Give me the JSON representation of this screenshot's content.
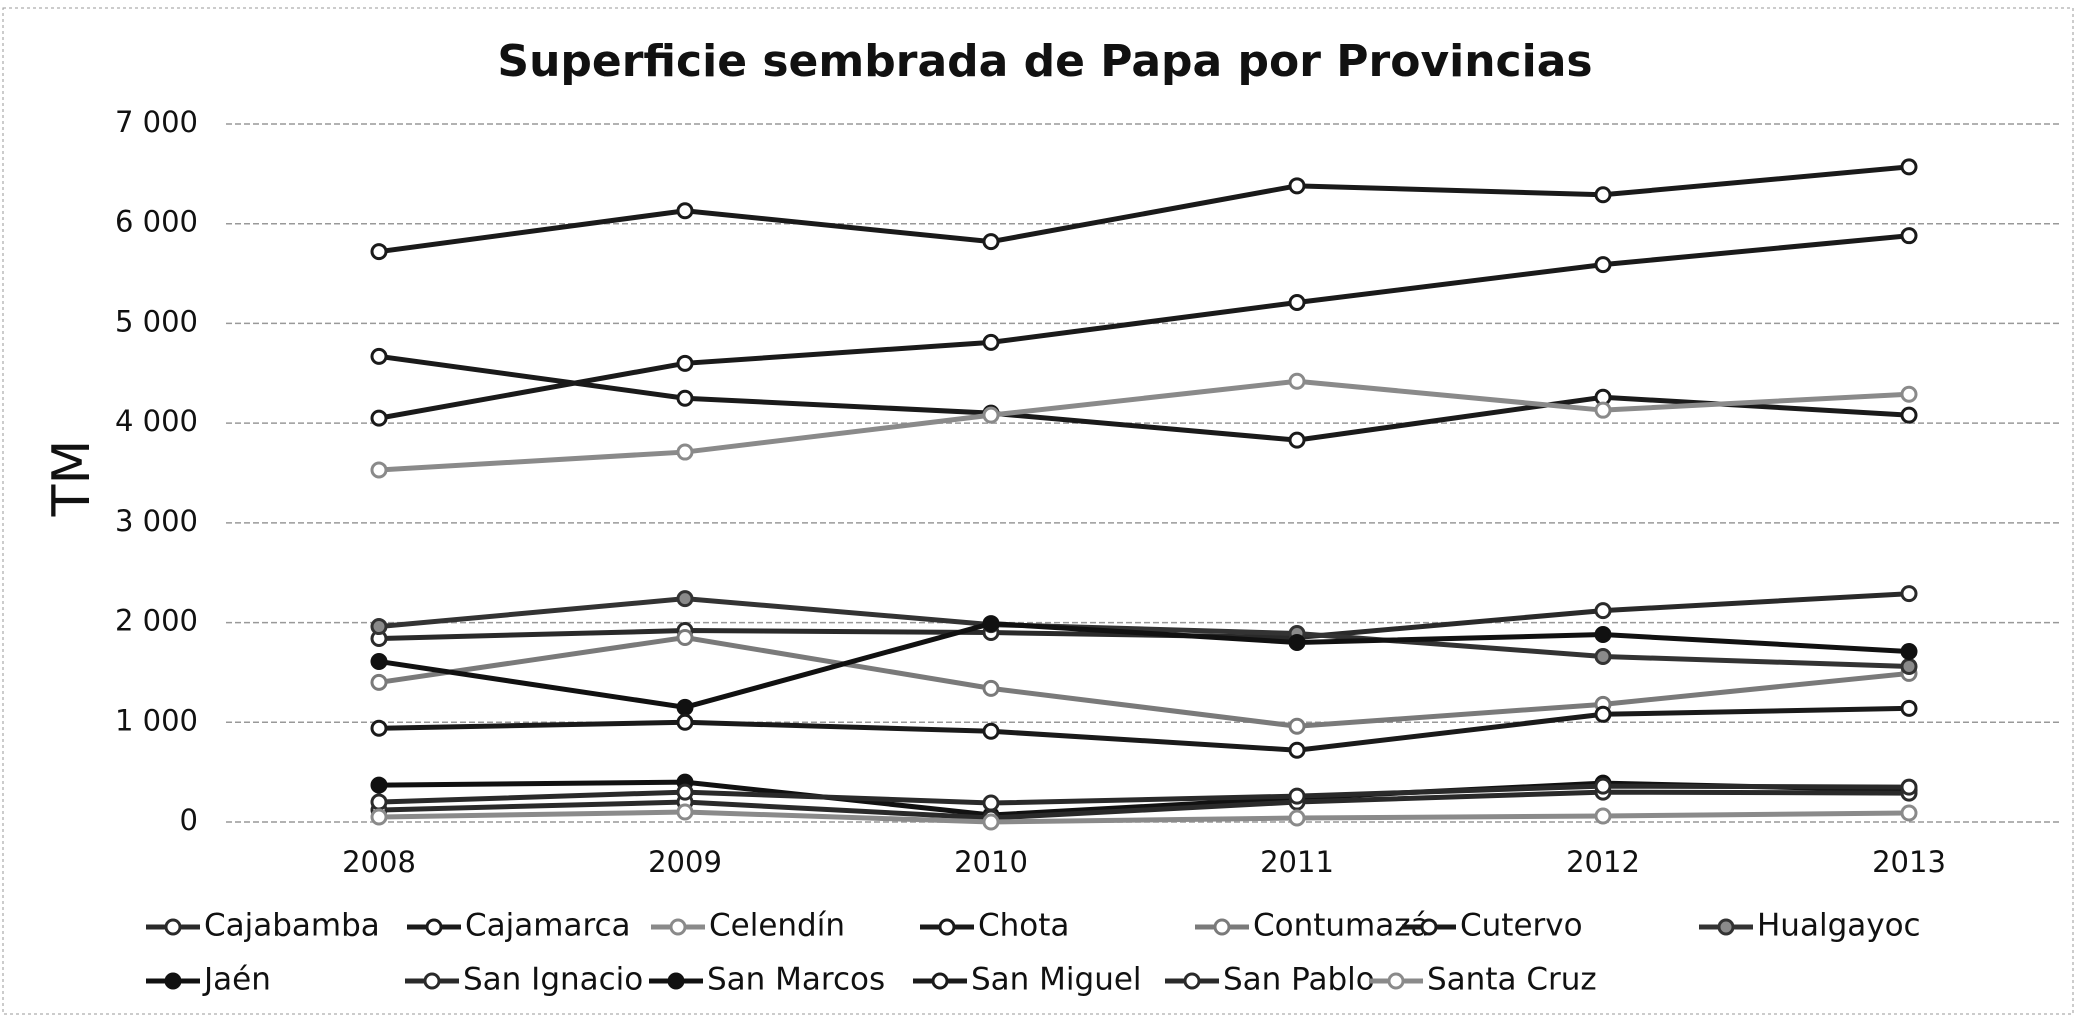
{
  "chart_data": {
    "type": "line",
    "title": "Superficie sembrada de Papa por Provincias",
    "y_label": "TM",
    "categories": [
      "2008",
      "2009",
      "2010",
      "2011",
      "2012",
      "2013"
    ],
    "ylim": [
      0,
      7000
    ],
    "yticks": [
      0,
      {
        "value": 1000,
        "label": "1 000"
      },
      {
        "value": 2000,
        "label": "2 000"
      },
      {
        "value": 3000,
        "label": "3 000"
      },
      {
        "value": 4000,
        "label": "4 000"
      },
      {
        "value": 5000,
        "label": "5 000"
      },
      {
        "value": 6000,
        "label": "6 000"
      },
      {
        "value": 7000,
        "label": "7 000"
      }
    ],
    "grid": true,
    "legend": "bottom",
    "series": [
      {
        "name": "Cajabamba",
        "color": "#2a2a2a",
        "marker_fill": "#ffffff",
        "values": [
          1840,
          1920,
          1900,
          1850,
          2120,
          2290
        ]
      },
      {
        "name": "Cajamarca",
        "color": "#1a1a1a",
        "marker_fill": "#ffffff",
        "values": [
          4670,
          4250,
          4100,
          3830,
          4260,
          4080
        ]
      },
      {
        "name": "Celendín",
        "color": "#8a8a8a",
        "marker_fill": "#ffffff",
        "values": [
          3530,
          3710,
          4080,
          4420,
          4130,
          4290
        ]
      },
      {
        "name": "Chota",
        "color": "#1a1a1a",
        "marker_fill": "#ffffff",
        "values": [
          5720,
          6130,
          5820,
          6380,
          6290,
          6570
        ]
      },
      {
        "name": "Contumazá",
        "color": "#7a7a7a",
        "marker_fill": "#ffffff",
        "values": [
          1400,
          1850,
          1340,
          960,
          1180,
          1490
        ]
      },
      {
        "name": "Cutervo",
        "color": "#1a1a1a",
        "marker_fill": "#ffffff",
        "values": [
          4050,
          4600,
          4810,
          5210,
          5590,
          5880
        ]
      },
      {
        "name": "Hualgayoc",
        "color": "#333333",
        "marker_fill": "#8a8a8a",
        "values": [
          1960,
          2240,
          1980,
          1890,
          1660,
          1560
        ]
      },
      {
        "name": "Jaén",
        "color": "#111111",
        "marker_fill": "#111111",
        "values": [
          370,
          400,
          70,
          240,
          390,
          320
        ]
      },
      {
        "name": "San Ignacio",
        "color": "#2a2a2a",
        "marker_fill": "#ffffff",
        "values": [
          120,
          200,
          40,
          200,
          300,
          290
        ]
      },
      {
        "name": "San Marcos",
        "color": "#111111",
        "marker_fill": "#111111",
        "values": [
          1610,
          1150,
          1990,
          1800,
          1880,
          1710
        ]
      },
      {
        "name": "San Miguel",
        "color": "#1a1a1a",
        "marker_fill": "#ffffff",
        "values": [
          940,
          1000,
          910,
          720,
          1080,
          1140
        ]
      },
      {
        "name": "San Pablo",
        "color": "#2a2a2a",
        "marker_fill": "#ffffff",
        "values": [
          200,
          300,
          190,
          260,
          360,
          350
        ]
      },
      {
        "name": "Santa Cruz",
        "color": "#8a8a8a",
        "marker_fill": "#ffffff",
        "values": [
          50,
          100,
          0,
          40,
          60,
          90
        ]
      }
    ]
  }
}
